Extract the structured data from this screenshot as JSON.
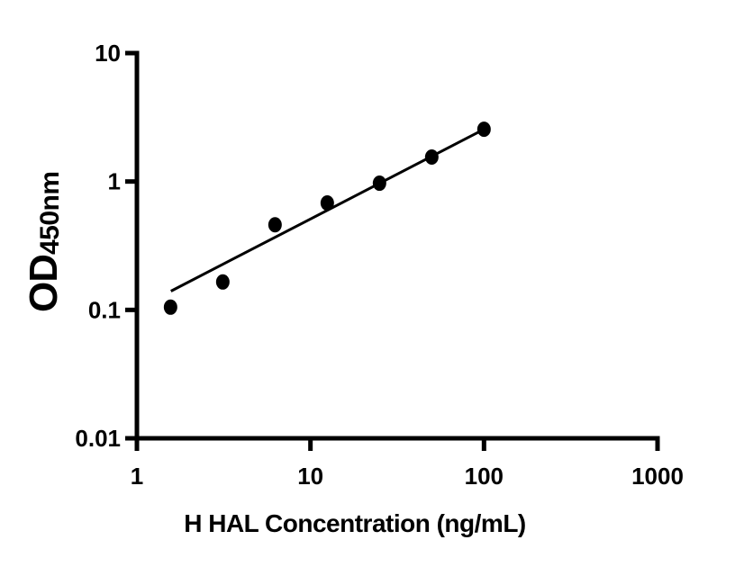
{
  "figure": {
    "background_color": "#ffffff",
    "axis_color": "#000000",
    "marker_color": "#000000",
    "line_color": "#000000"
  },
  "chart_data": {
    "type": "scatter",
    "title": "",
    "xlabel": "H HAL Concentration (ng/mL)",
    "ylabel": "OD",
    "ylabel_subscript": "450nm",
    "grid": false,
    "legend": false,
    "x_axis": {
      "scale": "log",
      "min": 1,
      "max": 1000,
      "ticks": [
        {
          "value": 1,
          "label": "1"
        },
        {
          "value": 10,
          "label": "10"
        },
        {
          "value": 100,
          "label": "100"
        },
        {
          "value": 1000,
          "label": "1000"
        }
      ]
    },
    "y_axis": {
      "scale": "log",
      "min": 0.01,
      "max": 10,
      "ticks": [
        {
          "value": 0.01,
          "label": "0.01"
        },
        {
          "value": 0.1,
          "label": "0.1"
        },
        {
          "value": 1,
          "label": "1"
        },
        {
          "value": 10,
          "label": "10"
        }
      ]
    },
    "series": [
      {
        "name": "standard-points",
        "type": "scatter",
        "marker": "filled-circle",
        "color": "#000000",
        "x": [
          1.5625,
          3.125,
          6.25,
          12.5,
          25,
          50,
          100
        ],
        "y": [
          0.105,
          0.165,
          0.46,
          0.68,
          0.97,
          1.55,
          2.55
        ]
      },
      {
        "name": "fit-line",
        "type": "line",
        "color": "#000000",
        "x": [
          1.57,
          100
        ],
        "y": [
          0.14,
          2.55
        ]
      }
    ]
  }
}
